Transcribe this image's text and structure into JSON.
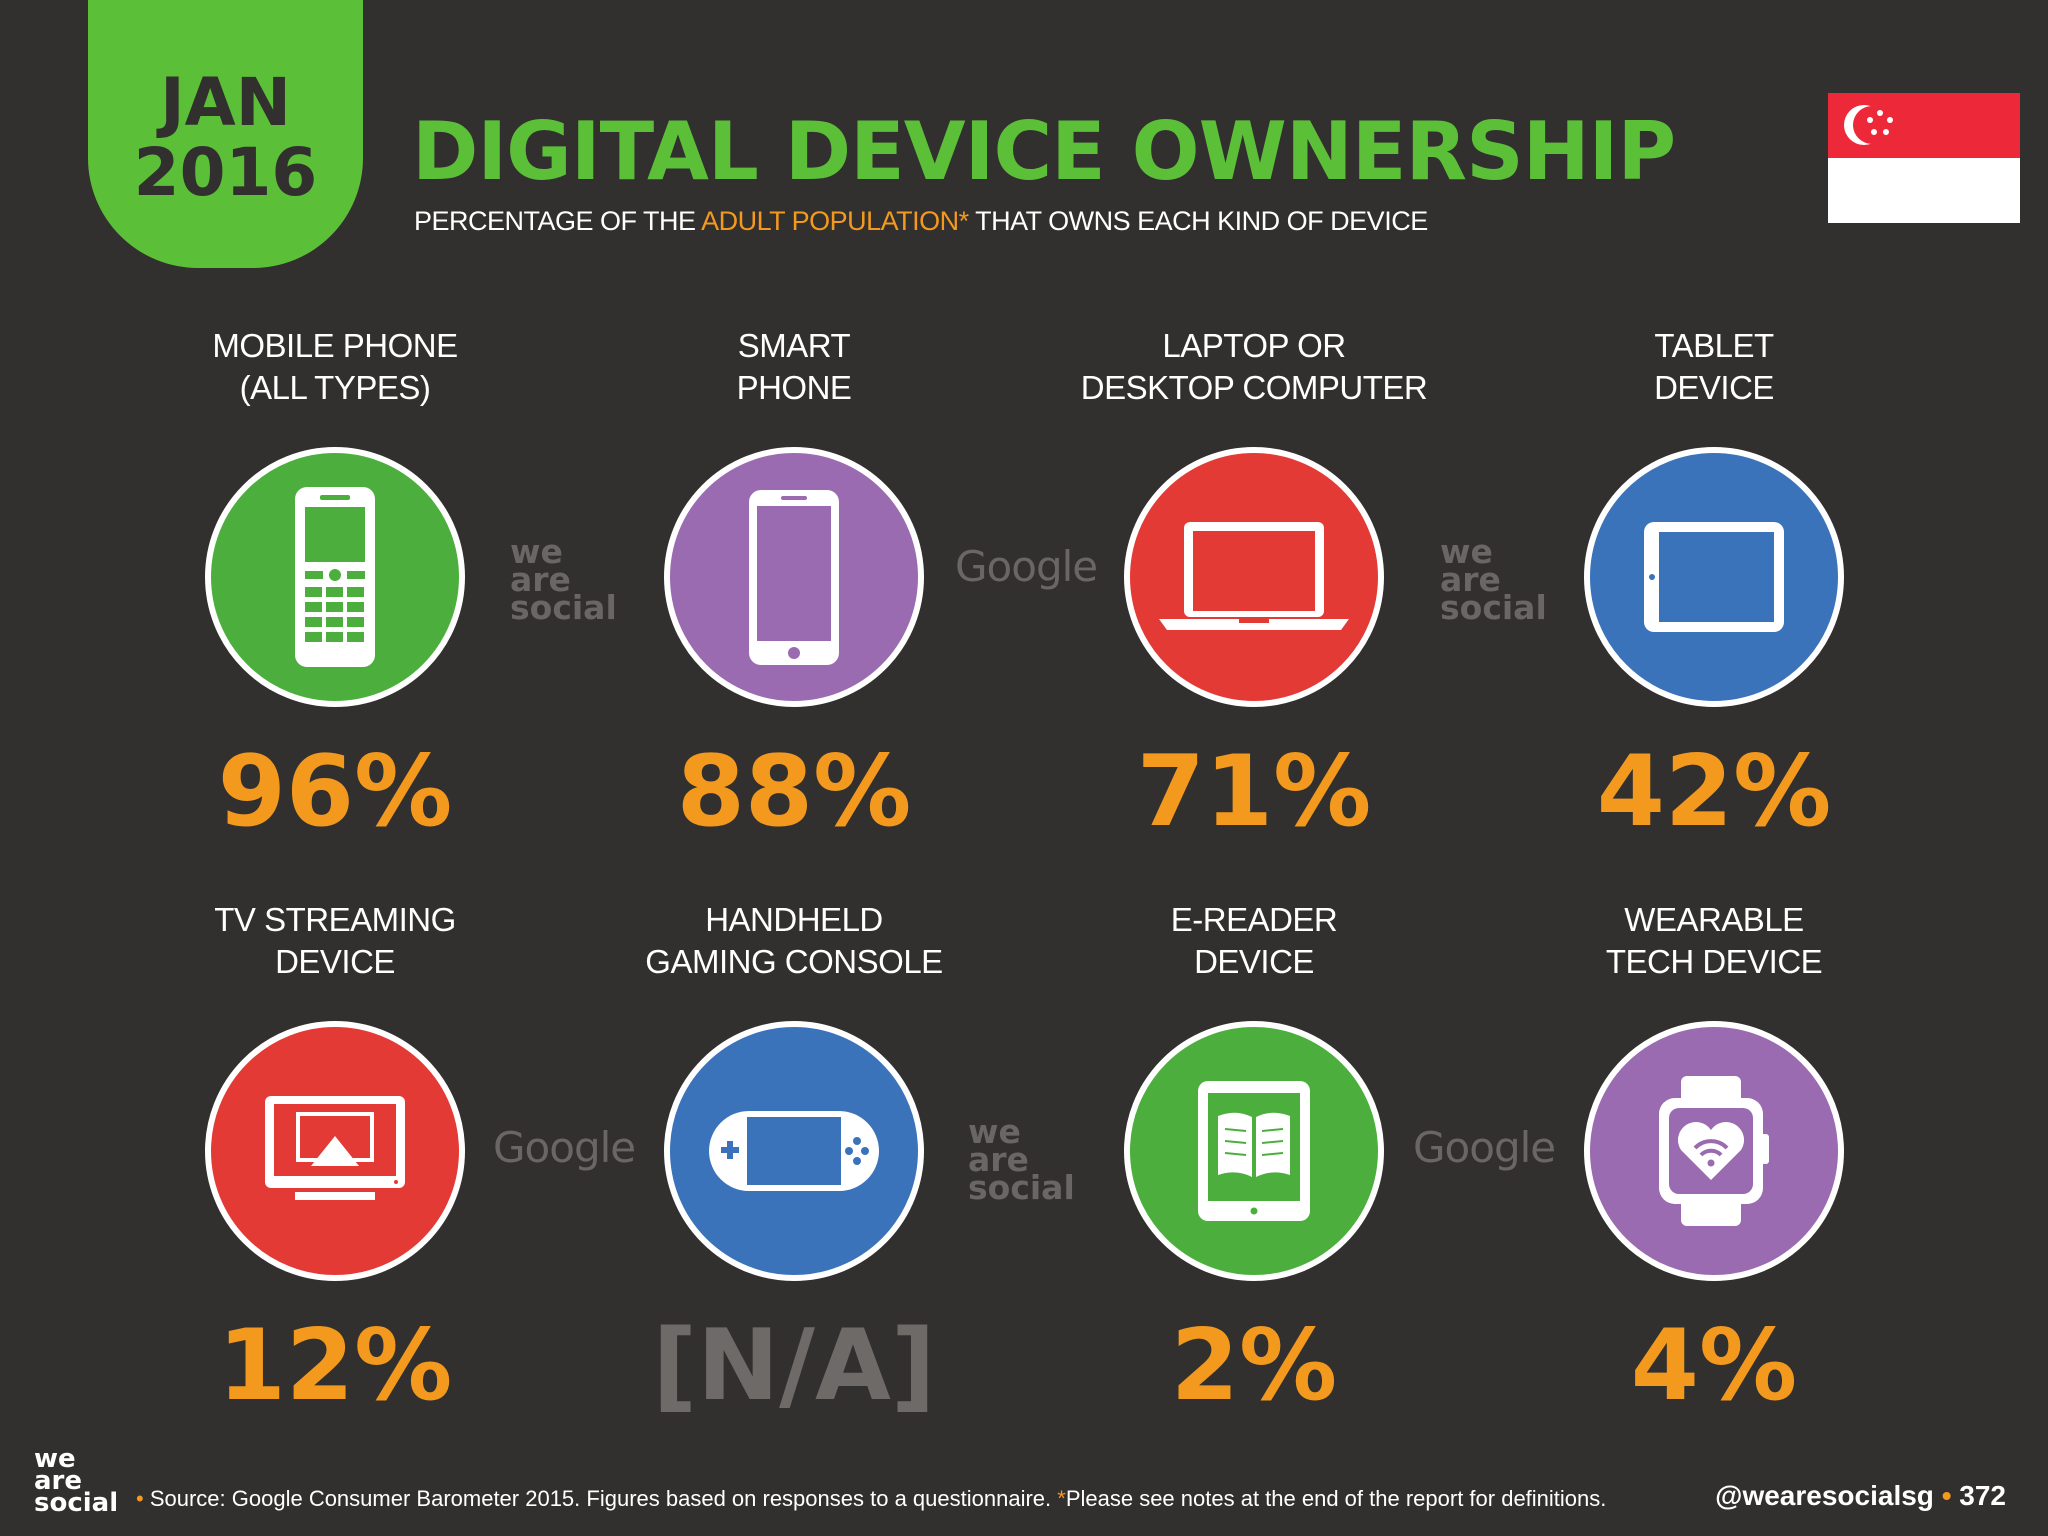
{
  "header": {
    "month": "JAN",
    "year": "2016",
    "title": "DIGITAL DEVICE OWNERSHIP",
    "subtitle_pre": "PERCENTAGE OF THE ",
    "subtitle_highlight": "ADULT POPULATION*",
    "subtitle_post": " THAT OWNS EACH KIND OF DEVICE"
  },
  "colors": {
    "background": "#322f2f",
    "accent_green": "#5cbf38",
    "accent_orange": "#f39a1e",
    "green": "#4caf3d",
    "purple": "#9a6bb0",
    "red": "#e43a36",
    "blue": "#3b73bb"
  },
  "devices": [
    {
      "label1": "MOBILE PHONE",
      "label2": "(ALL TYPES)",
      "value": "96%",
      "icon": "feature-phone-icon",
      "color": "#4caf3d"
    },
    {
      "label1": "SMART",
      "label2": "PHONE",
      "value": "88%",
      "icon": "smartphone-icon",
      "color": "#9a6bb0"
    },
    {
      "label1": "LAPTOP OR",
      "label2": "DESKTOP COMPUTER",
      "value": "71%",
      "icon": "laptop-icon",
      "color": "#e43a36"
    },
    {
      "label1": "TABLET",
      "label2": "DEVICE",
      "value": "42%",
      "icon": "tablet-icon",
      "color": "#3b73bb"
    },
    {
      "label1": "TV STREAMING",
      "label2": "DEVICE",
      "value": "12%",
      "icon": "tv-streaming-icon",
      "color": "#e43a36"
    },
    {
      "label1": "HANDHELD",
      "label2": "GAMING CONSOLE",
      "value": "[N/A]",
      "icon": "gaming-console-icon",
      "color": "#3b73bb"
    },
    {
      "label1": "E-READER",
      "label2": "DEVICE",
      "value": "2%",
      "icon": "ereader-icon",
      "color": "#4caf3d"
    },
    {
      "label1": "WEARABLE",
      "label2": "TECH DEVICE",
      "value": "4%",
      "icon": "smartwatch-icon",
      "color": "#9a6bb0"
    }
  ],
  "watermarks": {
    "we": "we",
    "are": "are",
    "social": "social",
    "google": "Google"
  },
  "footer": {
    "logo_we": "we",
    "logo_are": "are",
    "logo_social": "social",
    "source": "Source: Google Consumer Barometer 2015. Figures based on responses to a questionnaire. ",
    "note": "*",
    "note_text": "Please see notes at the end of the report for definitions.",
    "handle": "@wearesocialsg",
    "page": "372"
  }
}
